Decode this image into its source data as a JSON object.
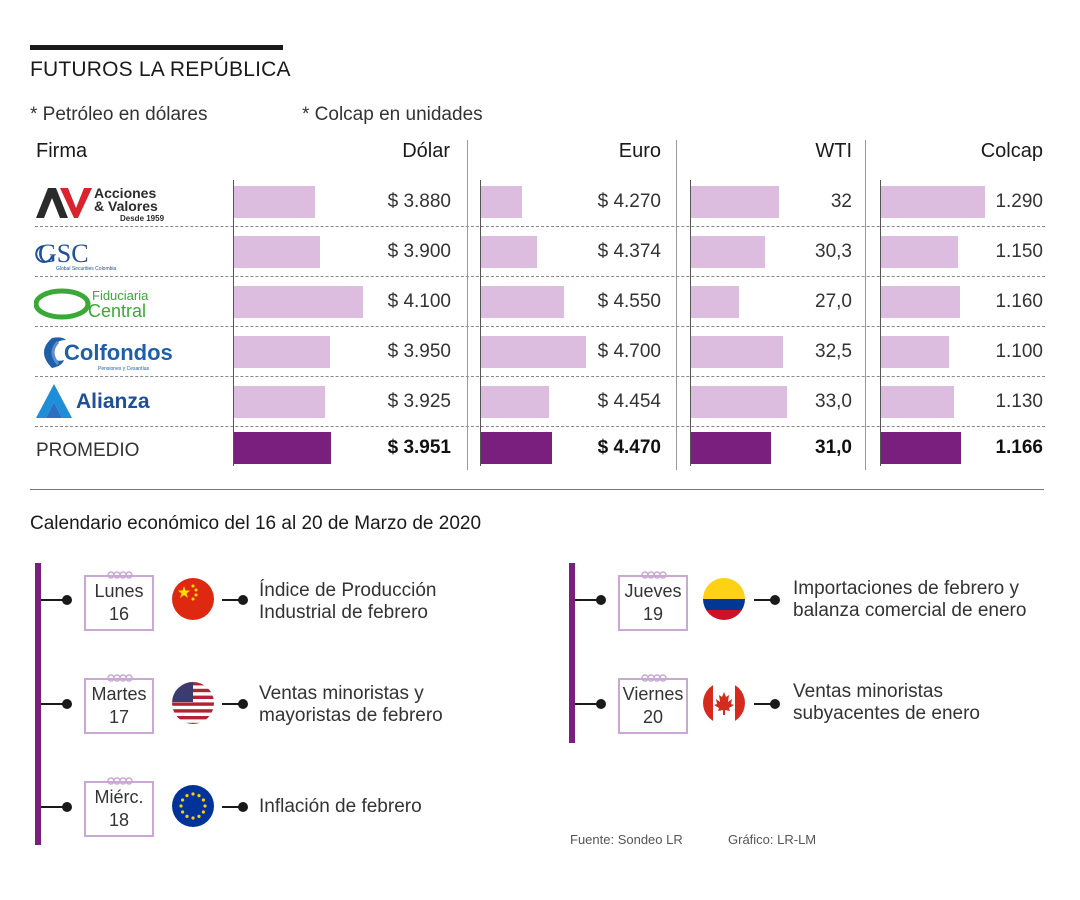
{
  "title": "FUTUROS LA REPÚBLICA",
  "notes": [
    "* Petróleo en dólares",
    "* Colcap en unidades"
  ],
  "table_headers": [
    "Firma",
    "Dólar",
    "Euro",
    "WTI",
    "Colcap"
  ],
  "logos": [
    {
      "icon": "acciones-valores-logo",
      "line1": "Acciones",
      "line2": "& Valores",
      "line3": "Desde 1959",
      "mark": "AV"
    },
    {
      "icon": "gsc-logo",
      "text": "GSC",
      "sub": "Global Securities Colombia"
    },
    {
      "icon": "fiduciaria-central-logo",
      "line1": "Fiduciaria",
      "line2": "Central"
    },
    {
      "icon": "colfondos-logo",
      "text": "Colfondos",
      "sub": "Pensiones y Cesantías"
    },
    {
      "icon": "alianza-logo",
      "text": "Alianza"
    }
  ],
  "promedio_label": "PROMEDIO",
  "colors": {
    "bar_light": "#dcbde0",
    "bar_dark": "#7a1f7e",
    "timeline": "#7a1f7e",
    "calendar_border": "#c9a8d4"
  },
  "chart_data": {
    "type": "bar",
    "orientation": "horizontal",
    "categories": [
      "Acciones & Valores",
      "GSC",
      "Fiduciaria Central",
      "Colfondos",
      "Alianza",
      "PROMEDIO"
    ],
    "series": [
      {
        "name": "Dólar",
        "values": [
          3880,
          3900,
          4100,
          3950,
          3925,
          3951
        ],
        "labels": [
          "$ 3.880",
          "$ 3.900",
          "$ 4.100",
          "$ 3.950",
          "$ 3.925",
          "$ 3.951"
        ]
      },
      {
        "name": "Euro",
        "values": [
          4270,
          4374,
          4550,
          4700,
          4454,
          4470
        ],
        "labels": [
          "$ 4.270",
          "$ 4.374",
          "$ 4.550",
          "$ 4.700",
          "$ 4.454",
          "$ 4.470"
        ]
      },
      {
        "name": "WTI",
        "values": [
          32,
          30.3,
          27.0,
          32.5,
          33.0,
          31.0
        ],
        "labels": [
          "32",
          "30,3",
          "27,0",
          "32,5",
          "33,0",
          "31,0"
        ]
      },
      {
        "name": "Colcap",
        "values": [
          1290,
          1150,
          1160,
          1100,
          1130,
          1166
        ],
        "labels": [
          "1.290",
          "1.150",
          "1.160",
          "1.100",
          "1.130",
          "1.166"
        ]
      }
    ]
  },
  "calendar_title": "Calendario económico del 16 al 20 de Marzo de 2020",
  "calendar": [
    {
      "day": "Lunes",
      "date": "16",
      "flag": "china-flag-icon",
      "event_l1": "Índice de Producción",
      "event_l2": "Industrial de febrero"
    },
    {
      "day": "Martes",
      "date": "17",
      "flag": "usa-flag-icon",
      "event_l1": "Ventas minoristas y",
      "event_l2": "mayoristas de febrero"
    },
    {
      "day": "Miérc.",
      "date": "18",
      "flag": "eu-flag-icon",
      "event_l1": "Inflación de febrero",
      "event_l2": ""
    },
    {
      "day": "Jueves",
      "date": "19",
      "flag": "colombia-flag-icon",
      "event_l1": "Importaciones de febrero y",
      "event_l2": "balanza comercial de enero"
    },
    {
      "day": "Viernes",
      "date": "20",
      "flag": "canada-flag-icon",
      "event_l1": "Ventas minoristas",
      "event_l2": "subyacentes de enero"
    }
  ],
  "footer": {
    "source": "Fuente: Sondeo LR",
    "graphic": "Gráfico: LR-LM"
  }
}
